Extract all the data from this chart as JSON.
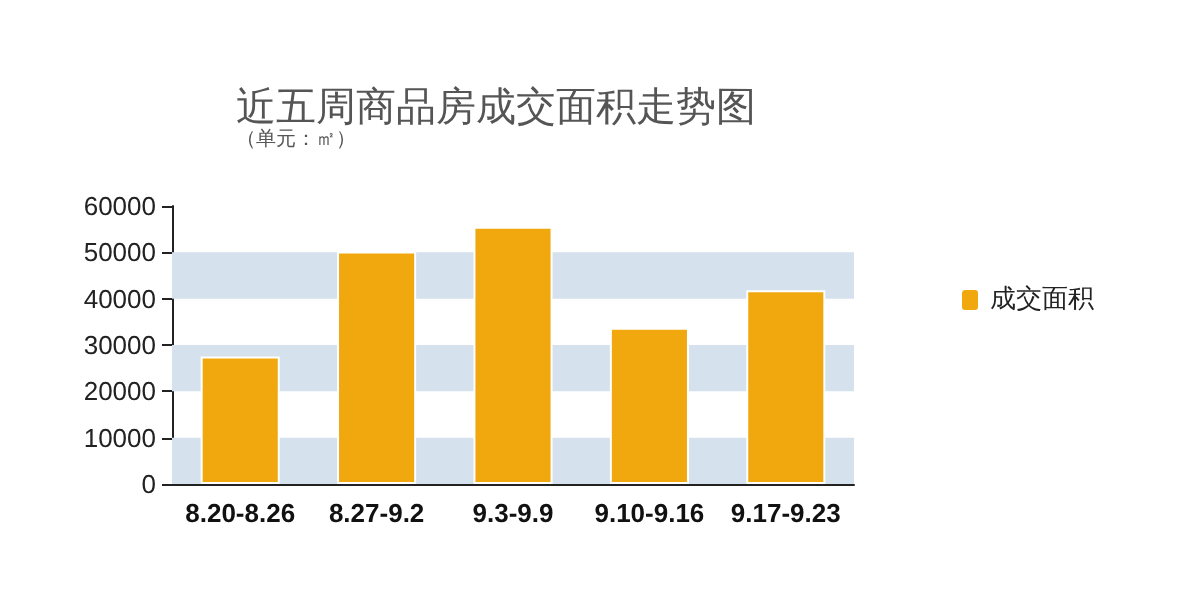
{
  "chart_data": {
    "type": "bar",
    "title": "近五周商品房成交面积走势图",
    "subtitle": "（单元：㎡）",
    "categories": [
      "8.20-8.26",
      "8.27-9.2",
      "9.3-9.9",
      "9.10-9.16",
      "9.17-9.23"
    ],
    "series": [
      {
        "name": "成交面积",
        "color": "#f0a80e",
        "values": [
          27500,
          50200,
          55500,
          33700,
          41800
        ]
      }
    ],
    "ylim": [
      0,
      60000
    ],
    "yticks": [
      0,
      10000,
      20000,
      30000,
      40000,
      50000,
      60000
    ],
    "bands": [
      {
        "axis": "y",
        "from": 0,
        "to": 10000,
        "color": "#d5e1ed"
      },
      {
        "axis": "y",
        "from": 20000,
        "to": 30000,
        "color": "#d5e1ed"
      },
      {
        "axis": "y",
        "from": 40000,
        "to": 50000,
        "color": "#d5e1ed"
      }
    ],
    "grid": false,
    "legend": "right"
  }
}
